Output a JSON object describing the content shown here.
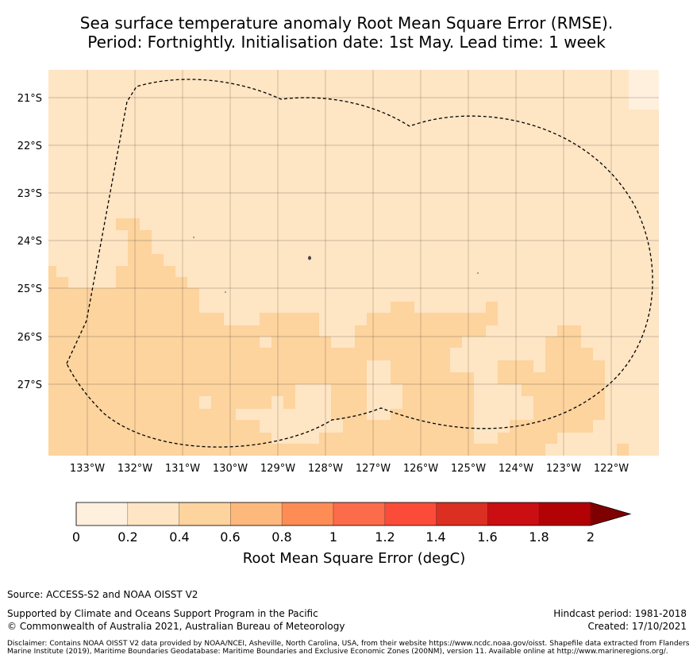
{
  "title": {
    "line1": "Sea surface temperature anomaly Root Mean Square Error (RMSE).",
    "line2": "Period: Fortnightly. Initialisation date: 1st May. Lead time: 1 week"
  },
  "map": {
    "lon_range": [
      -133.8,
      -121.0
    ],
    "lat_range": [
      -28.5,
      -20.4
    ],
    "lon_ticks": [
      "133°W",
      "132°W",
      "131°W",
      "130°W",
      "129°W",
      "128°W",
      "127°W",
      "126°W",
      "125°W",
      "124°W",
      "123°W",
      "122°W"
    ],
    "lat_ticks": [
      "21°S",
      "22°S",
      "23°S",
      "24°S",
      "25°S",
      "26°S",
      "27°S"
    ],
    "gridlines": true,
    "boundary": "dashed EEZ outline",
    "colors": {
      "0.0-0.2": "#fff0de",
      "0.2-0.4": "#fee5c4",
      "0.4-0.6": "#fdd39e",
      "background": "#fee5c4"
    }
  },
  "colorbar": {
    "ticks": [
      "0",
      "0.2",
      "0.4",
      "0.6",
      "0.8",
      "1",
      "1.2",
      "1.4",
      "1.6",
      "1.8",
      "2"
    ],
    "colors": [
      "#fff0de",
      "#fee5c4",
      "#fdd39e",
      "#fdb87c",
      "#fd8d55",
      "#fc6b4a",
      "#fb4c3a",
      "#db2f22",
      "#cb0e12",
      "#b20206",
      "#7f0000"
    ],
    "label": "Root Mean Square Error (degC)"
  },
  "footer": {
    "source": "Source: ACCESS-S2 and NOAA OISST V2",
    "supported": "Supported by Climate and Oceans Support Program in the Pacific",
    "copyright": "© Commonwealth of Australia 2021, Australian Bureau of Meteorology",
    "hindcast": "Hindcast period: 1981-2018",
    "created": "Created: 17/10/2021",
    "disclaimer": "Disclaimer: Contains NOAA OISST V2 data provided by NOAA/NCEI, Asheville, North Carolina, USA, from their website https://www.ncdc.noaa.gov/oisst. Shapefile data extracted from Flanders Marine Institute (2019), Maritime Boundaries Geodatabase: Maritime Boundaries and Exclusive Economic Zones (200NM), version 11. Available online at http://www.marineregions.org/."
  }
}
